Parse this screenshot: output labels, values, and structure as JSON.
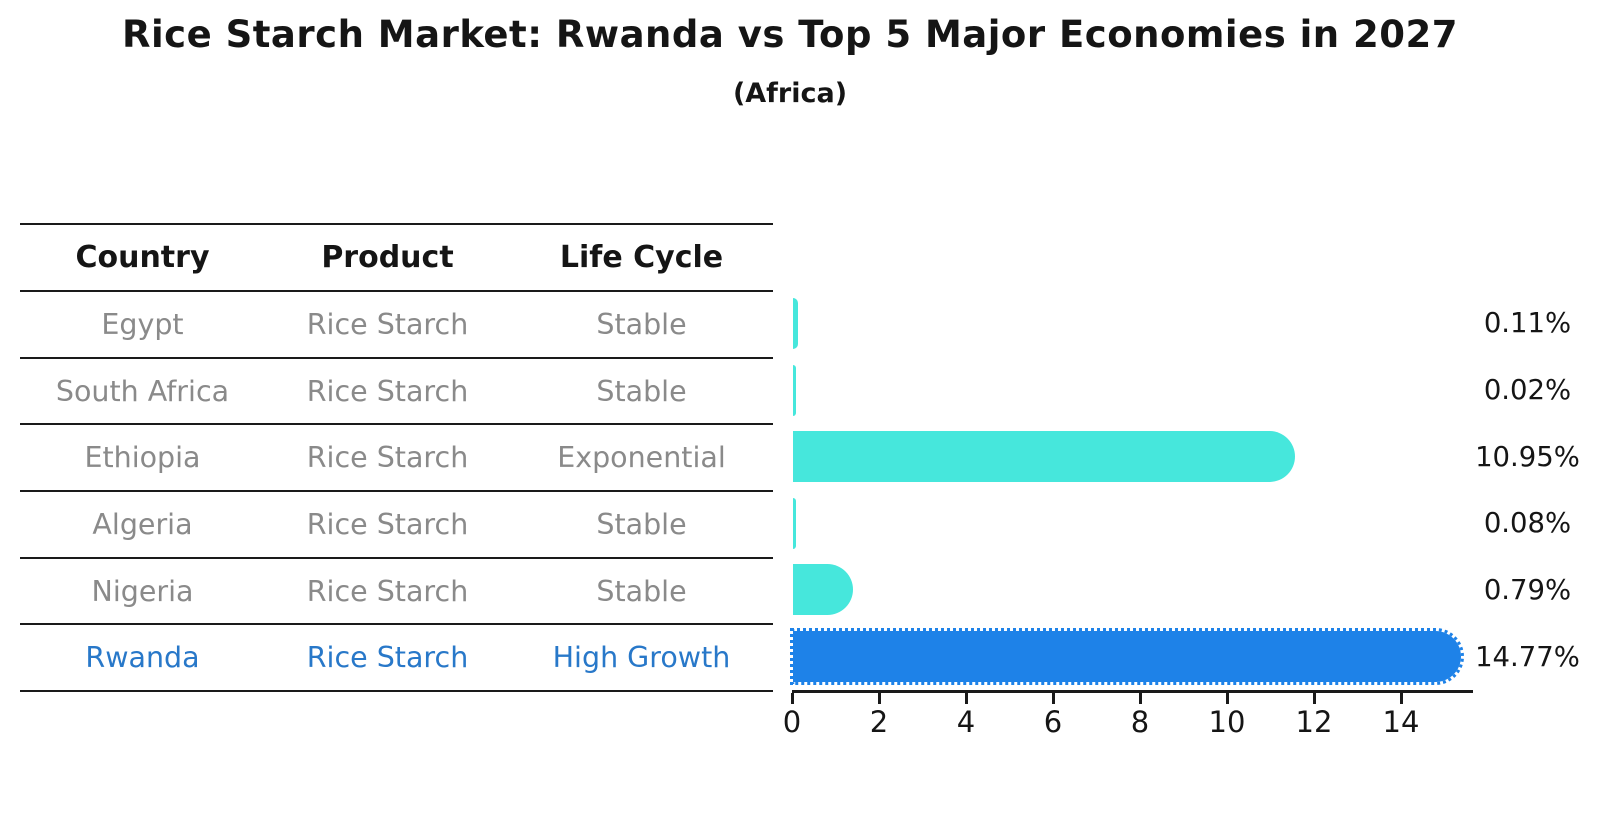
{
  "header": {
    "title": "Rice Starch Market: Rwanda vs Top 5 Major Economies in 2027",
    "subtitle": "(Africa)"
  },
  "table": {
    "headers": [
      "Country",
      "Product",
      "Life Cycle"
    ],
    "rows": [
      {
        "country": "Egypt",
        "product": "Rice Starch",
        "life_cycle": "Stable",
        "highlight": false
      },
      {
        "country": "South Africa",
        "product": "Rice Starch",
        "life_cycle": "Stable",
        "highlight": false
      },
      {
        "country": "Ethiopia",
        "product": "Rice Starch",
        "life_cycle": "Exponential",
        "highlight": false
      },
      {
        "country": "Algeria",
        "product": "Rice Starch",
        "life_cycle": "Stable",
        "highlight": false
      },
      {
        "country": "Nigeria",
        "product": "Rice Starch",
        "life_cycle": "Stable",
        "highlight": false
      },
      {
        "country": "Rwanda",
        "product": "Rice Starch",
        "life_cycle": "High Growth",
        "highlight": true
      }
    ]
  },
  "chart_data": {
    "type": "bar",
    "orientation": "horizontal",
    "title": "Rice Starch Market: Rwanda vs Top 5 Major Economies in 2027",
    "subtitle": "(Africa)",
    "categories": [
      "Egypt",
      "South Africa",
      "Ethiopia",
      "Algeria",
      "Nigeria",
      "Rwanda"
    ],
    "values": [
      0.11,
      0.02,
      10.95,
      0.08,
      0.79,
      14.77
    ],
    "value_labels": [
      "0.11%",
      "0.02%",
      "10.95%",
      "0.08%",
      "0.79%",
      "14.77%"
    ],
    "x_ticks": [
      0,
      2,
      4,
      6,
      8,
      10,
      12,
      14
    ],
    "xlim": [
      0,
      15.6
    ],
    "grid": false,
    "legend": "none",
    "bar_color": "#46e7dc",
    "highlight_color": "#1e82e8",
    "highlight_index": 5,
    "axis_color": "#1a1a1a",
    "text_color": "#151515",
    "muted_text_color": "#8a8a8a",
    "highlight_text_color": "#2878c9"
  }
}
